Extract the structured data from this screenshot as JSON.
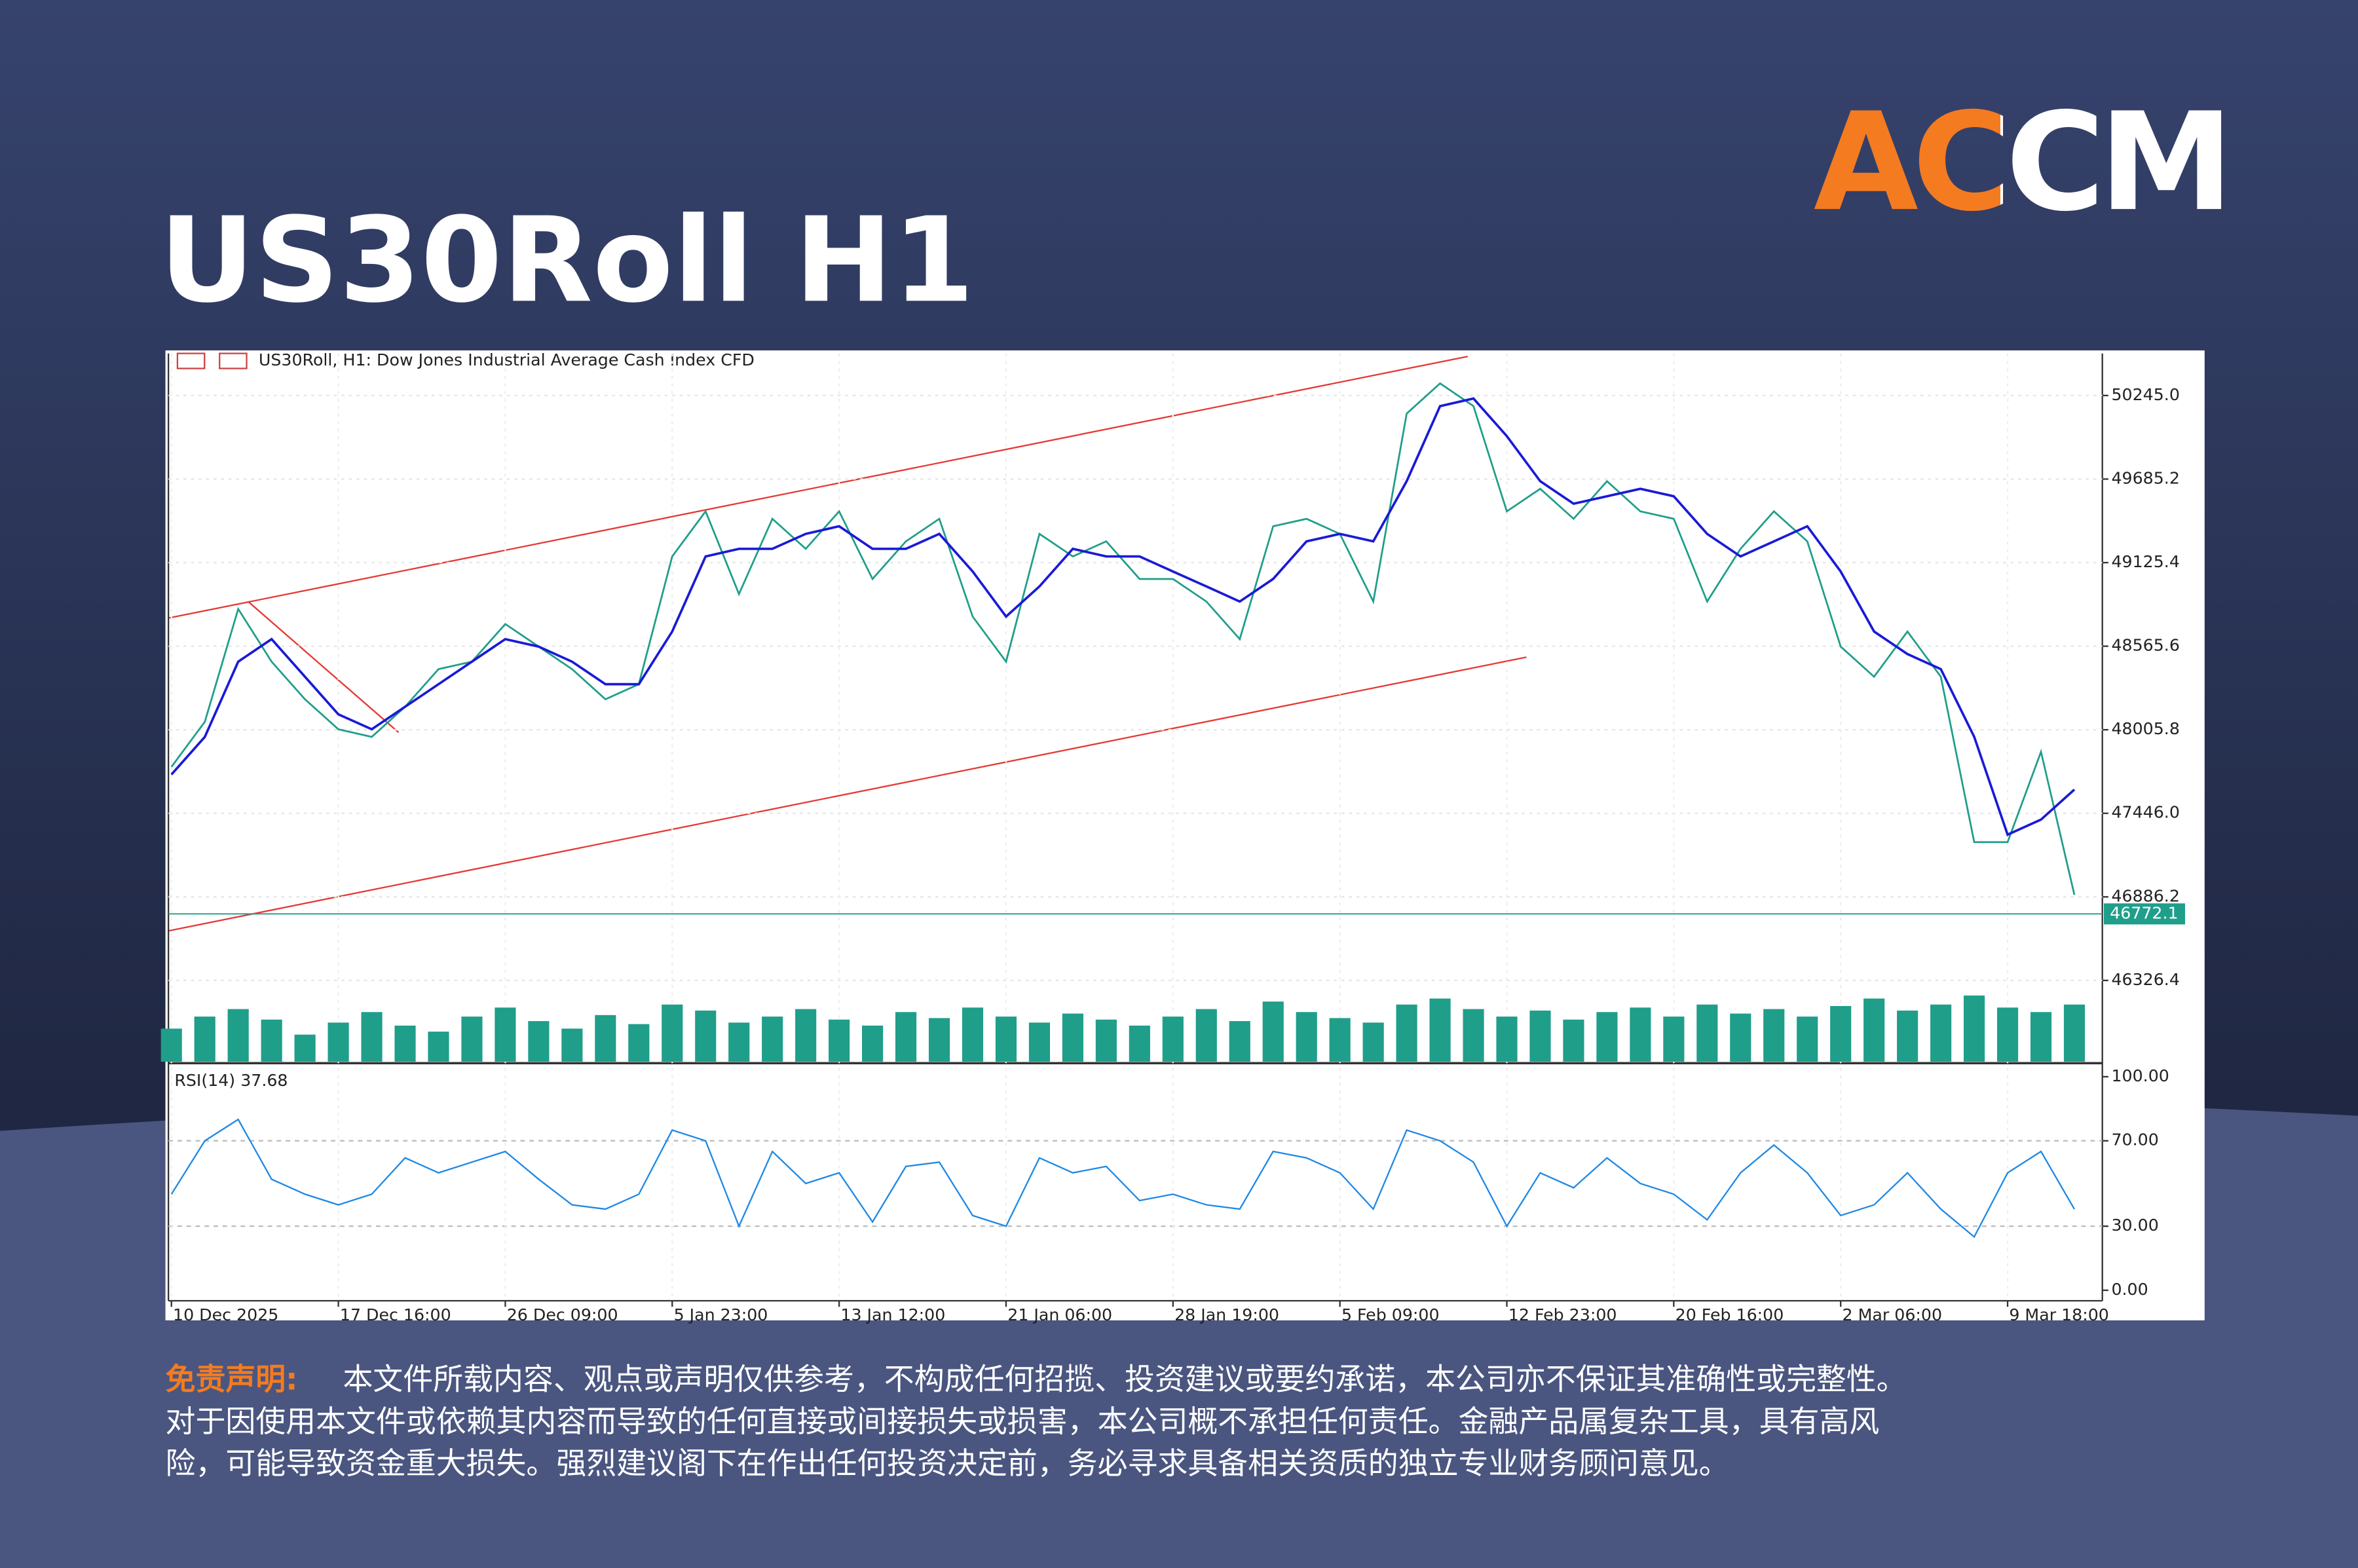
{
  "header": {
    "title": "US30Roll H1",
    "logo": "ACCM"
  },
  "chart_data": {
    "type": "line",
    "title": "US30Roll, H1:  Dow Jones Industrial Average Cash Index CFD",
    "categories": [
      "10 Dec 2025",
      null,
      null,
      null,
      null,
      "17 Dec 16:00",
      null,
      null,
      null,
      null,
      "26 Dec 09:00",
      null,
      null,
      null,
      null,
      "5 Jan 23:00",
      null,
      null,
      null,
      null,
      "13 Jan 12:00",
      null,
      null,
      null,
      null,
      "21 Jan 06:00",
      null,
      null,
      null,
      null,
      "28 Jan 19:00",
      null,
      null,
      null,
      null,
      "5 Feb 09:00",
      null,
      null,
      null,
      null,
      "12 Feb 23:00",
      null,
      null,
      null,
      null,
      "20 Feb 16:00",
      null,
      null,
      null,
      null,
      "2 Mar 06:00",
      null,
      null,
      null,
      null,
      "9 Mar 18:00",
      null,
      null
    ],
    "series": [
      {
        "color": "#1f9e8a",
        "values": [
          47757,
          48059,
          48815,
          48462,
          48210,
          48009,
          47958,
          48160,
          48412,
          48462,
          48714,
          48563,
          48412,
          48210,
          48311,
          49167,
          49469,
          48915,
          49419,
          49218,
          49469,
          49016,
          49268,
          49419,
          48764,
          48462,
          49318,
          49167,
          49268,
          49016,
          49016,
          48865,
          48613,
          49369,
          49419,
          49318,
          48865,
          50124,
          50326,
          50174,
          49469,
          49620,
          49419,
          49671,
          49469,
          49419,
          48865,
          49218,
          49469,
          49268,
          48563,
          48361,
          48664,
          48361,
          47253,
          47253,
          47858,
          46900
        ]
      },
      {
        "color": "#1a1ad6",
        "values": [
          47706,
          47958,
          48462,
          48613,
          48361,
          48109,
          48009,
          48160,
          48311,
          48462,
          48613,
          48563,
          48462,
          48311,
          48311,
          48664,
          49167,
          49218,
          49218,
          49318,
          49369,
          49218,
          49218,
          49318,
          49066,
          48764,
          48966,
          49218,
          49167,
          49167,
          49066,
          48966,
          48865,
          49016,
          49268,
          49318,
          49268,
          49671,
          50174,
          50225,
          49973,
          49671,
          49520,
          49570,
          49620,
          49570,
          49318,
          49167,
          49268,
          49369,
          49066,
          48664,
          48513,
          48412,
          47958,
          47303,
          47404,
          47605
        ]
      }
    ],
    "ylim": [
      45782,
      50527
    ],
    "yticks": [
      {
        "value": 50245,
        "label": "50245.0"
      },
      49685.2,
      49125.4,
      48565.6,
      48005.8,
      {
        "value": 47446,
        "label": "47446.0"
      },
      46886.2,
      46326.4
    ],
    "grid": true,
    "last_price": 46772.1,
    "last_price_color": "#1f9e8a",
    "volume": {
      "color": "#1f9e8a",
      "values": [
        22,
        30,
        35,
        28,
        18,
        26,
        33,
        24,
        20,
        30,
        36,
        27,
        22,
        31,
        25,
        38,
        34,
        26,
        30,
        35,
        28,
        24,
        33,
        29,
        36,
        30,
        26,
        32,
        28,
        24,
        30,
        35,
        27,
        40,
        33,
        29,
        26,
        38,
        42,
        35,
        30,
        34,
        28,
        33,
        36,
        30,
        38,
        32,
        35,
        30,
        37,
        42,
        34,
        38,
        44,
        36,
        33,
        38
      ]
    },
    "rsi": {
      "label": "RSI(14) 37.68",
      "color": "#1e88e5",
      "ylim": [
        0,
        100
      ],
      "yticks": [
        {
          "value": 100,
          "label": "100.00"
        },
        {
          "value": 70,
          "label": "70.00"
        },
        {
          "value": 30,
          "label": "30.00"
        },
        {
          "value": 0,
          "label": "0.00"
        }
      ],
      "values": [
        45,
        70,
        80,
        52,
        45,
        40,
        45,
        62,
        55,
        60,
        65,
        52,
        40,
        38,
        45,
        75,
        70,
        30,
        65,
        50,
        55,
        32,
        58,
        60,
        35,
        30,
        62,
        55,
        58,
        42,
        45,
        40,
        38,
        65,
        62,
        55,
        38,
        75,
        70,
        60,
        30,
        55,
        48,
        62,
        50,
        45,
        33,
        55,
        68,
        55,
        35,
        40,
        55,
        38,
        25,
        55,
        65,
        38
      ]
    }
  },
  "disclaimer": {
    "label": "免责声明:",
    "lines": [
      "本文件所载内容、观点或声明仅供参考，不构成任何招揽、投资建议或要约承诺，本公司亦不保证其准确性或完整性。",
      "对于因使用本文件或依赖其内容而导致的任何直接或间接损失或损害，本公司概不承担任何责任。金融产品属复杂工具，具有高风",
      "险，可能导致资金重大损失。强烈建议阁下在作出任何投资决定前，务必寻求具备相关资质的独立专业财务顾问意见。"
    ]
  }
}
